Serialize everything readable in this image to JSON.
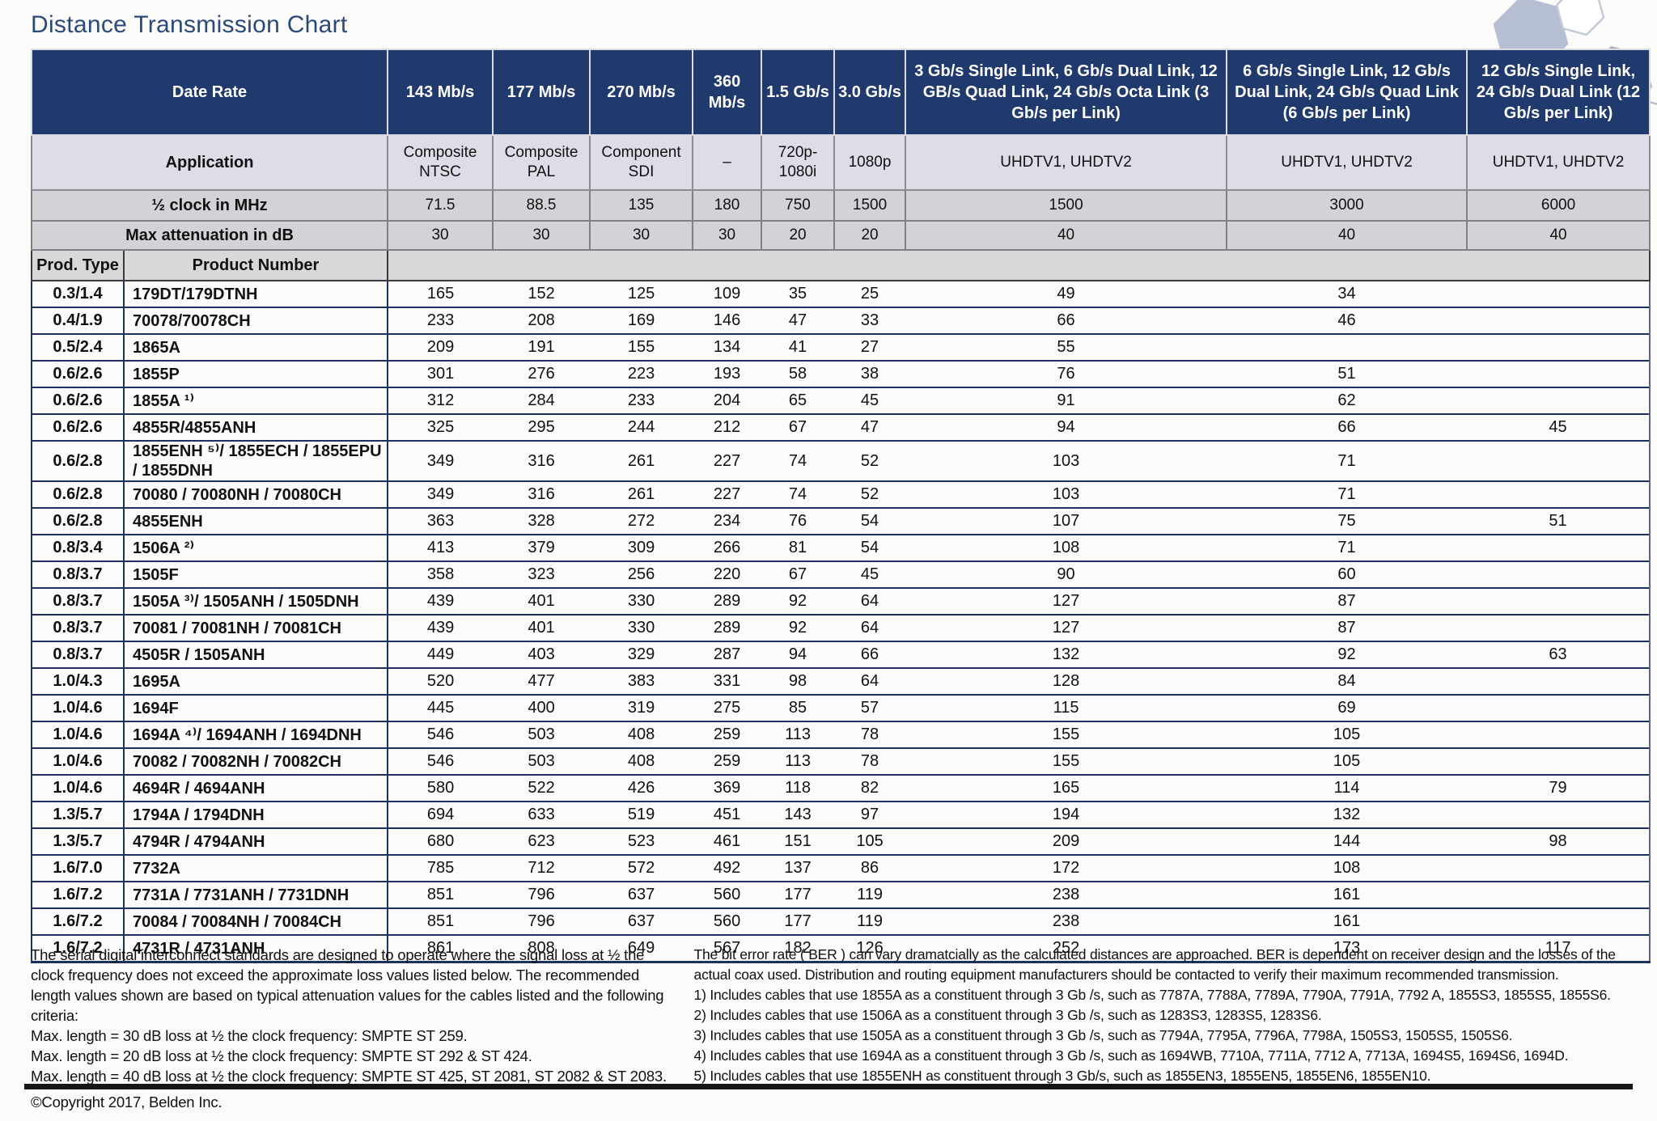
{
  "title": "Distance Transmission Chart",
  "colors": {
    "header_navy": "#203a6d",
    "title_blue": "#2b4a79",
    "row_line_navy": "#1c3160",
    "application_row_bg": "#dcdde7",
    "gray_row_bg": "#d2d3d6",
    "product_header_bg": "#d7d8da",
    "hexagon_fill": "#b5bed3",
    "hexagon_stroke": "#a9b1c3"
  },
  "table": {
    "header": {
      "date_rate_label": "Date Rate",
      "application_label": "Application",
      "clock_label": "½ clock in MHz",
      "attenuation_label": "Max attenuation in dB",
      "prod_type_label": "Prod. Type",
      "product_number_label": "Product Number",
      "columns": [
        {
          "rate": "143 Mb/s",
          "application": "Composite NTSC",
          "clock": "71.5",
          "attenuation": "30"
        },
        {
          "rate": "177 Mb/s",
          "application": "Composite PAL",
          "clock": "88.5",
          "attenuation": "30"
        },
        {
          "rate": "270 Mb/s",
          "application": "Component SDI",
          "clock": "135",
          "attenuation": "30"
        },
        {
          "rate": "360 Mb/s",
          "application": "–",
          "clock": "180",
          "attenuation": "30"
        },
        {
          "rate": "1.5 Gb/s",
          "application": "720p-1080i",
          "clock": "750",
          "attenuation": "20"
        },
        {
          "rate": "3.0 Gb/s",
          "application": "1080p",
          "clock": "1500",
          "attenuation": "20"
        },
        {
          "rate": "3 Gb/s Single Link, 6 Gb/s Dual Link, 12 GB/s Quad Link, 24 Gb/s Octa Link (3 Gb/s per Link)",
          "application": "UHDTV1, UHDTV2",
          "clock": "1500",
          "attenuation": "40"
        },
        {
          "rate": "6 Gb/s Single Link, 12 Gb/s Dual Link, 24 Gb/s Quad Link (6 Gb/s per Link)",
          "application": "UHDTV1, UHDTV2",
          "clock": "3000",
          "attenuation": "40"
        },
        {
          "rate": "12 Gb/s Single Link, 24 Gb/s Dual Link (12 Gb/s per Link)",
          "application": "UHDTV1, UHDTV2",
          "clock": "6000",
          "attenuation": "40"
        }
      ]
    },
    "rows": [
      {
        "type": "0.3/1.4",
        "product": "179DT/179DTNH",
        "values": [
          "165",
          "152",
          "125",
          "109",
          "35",
          "25",
          "49",
          "34",
          ""
        ]
      },
      {
        "type": "0.4/1.9",
        "product": "70078/70078CH",
        "values": [
          "233",
          "208",
          "169",
          "146",
          "47",
          "33",
          "66",
          "46",
          ""
        ]
      },
      {
        "type": "0.5/2.4",
        "product": "1865A",
        "values": [
          "209",
          "191",
          "155",
          "134",
          "41",
          "27",
          "55",
          "",
          ""
        ]
      },
      {
        "type": "0.6/2.6",
        "product": "1855P",
        "values": [
          "301",
          "276",
          "223",
          "193",
          "58",
          "38",
          "76",
          "51",
          ""
        ]
      },
      {
        "type": "0.6/2.6",
        "product": "1855A ¹⁾",
        "values": [
          "312",
          "284",
          "233",
          "204",
          "65",
          "45",
          "91",
          "62",
          ""
        ]
      },
      {
        "type": "0.6/2.6",
        "product": "4855R/4855ANH",
        "values": [
          "325",
          "295",
          "244",
          "212",
          "67",
          "47",
          "94",
          "66",
          "45"
        ]
      },
      {
        "type": "0.6/2.8",
        "product": "1855ENH ⁵⁾/ 1855ECH / 1855EPU / 1855DNH",
        "values": [
          "349",
          "316",
          "261",
          "227",
          "74",
          "52",
          "103",
          "71",
          ""
        ]
      },
      {
        "type": "0.6/2.8",
        "product": "70080 / 70080NH / 70080CH",
        "values": [
          "349",
          "316",
          "261",
          "227",
          "74",
          "52",
          "103",
          "71",
          ""
        ]
      },
      {
        "type": "0.6/2.8",
        "product": "4855ENH",
        "values": [
          "363",
          "328",
          "272",
          "234",
          "76",
          "54",
          "107",
          "75",
          "51"
        ]
      },
      {
        "type": "0.8/3.4",
        "product": "1506A ²⁾",
        "values": [
          "413",
          "379",
          "309",
          "266",
          "81",
          "54",
          "108",
          "71",
          ""
        ]
      },
      {
        "type": "0.8/3.7",
        "product": "1505F",
        "values": [
          "358",
          "323",
          "256",
          "220",
          "67",
          "45",
          "90",
          "60",
          ""
        ]
      },
      {
        "type": "0.8/3.7",
        "product": "1505A ³⁾/ 1505ANH / 1505DNH",
        "values": [
          "439",
          "401",
          "330",
          "289",
          "92",
          "64",
          "127",
          "87",
          ""
        ]
      },
      {
        "type": "0.8/3.7",
        "product": "70081 / 70081NH / 70081CH",
        "values": [
          "439",
          "401",
          "330",
          "289",
          "92",
          "64",
          "127",
          "87",
          ""
        ]
      },
      {
        "type": "0.8/3.7",
        "product": "4505R / 1505ANH",
        "values": [
          "449",
          "403",
          "329",
          "287",
          "94",
          "66",
          "132",
          "92",
          "63"
        ]
      },
      {
        "type": "1.0/4.3",
        "product": "1695A",
        "values": [
          "520",
          "477",
          "383",
          "331",
          "98",
          "64",
          "128",
          "84",
          ""
        ]
      },
      {
        "type": "1.0/4.6",
        "product": "1694F",
        "values": [
          "445",
          "400",
          "319",
          "275",
          "85",
          "57",
          "115",
          "69",
          ""
        ]
      },
      {
        "type": "1.0/4.6",
        "product": "1694A ⁴⁾/ 1694ANH / 1694DNH",
        "values": [
          "546",
          "503",
          "408",
          "259",
          "113",
          "78",
          "155",
          "105",
          ""
        ]
      },
      {
        "type": "1.0/4.6",
        "product": "70082 / 70082NH / 70082CH",
        "values": [
          "546",
          "503",
          "408",
          "259",
          "113",
          "78",
          "155",
          "105",
          ""
        ]
      },
      {
        "type": "1.0/4.6",
        "product": "4694R / 4694ANH",
        "values": [
          "580",
          "522",
          "426",
          "369",
          "118",
          "82",
          "165",
          "114",
          "79"
        ]
      },
      {
        "type": "1.3/5.7",
        "product": "1794A / 1794DNH",
        "values": [
          "694",
          "633",
          "519",
          "451",
          "143",
          "97",
          "194",
          "132",
          ""
        ]
      },
      {
        "type": "1.3/5.7",
        "product": "4794R / 4794ANH",
        "values": [
          "680",
          "623",
          "523",
          "461",
          "151",
          "105",
          "209",
          "144",
          "98"
        ]
      },
      {
        "type": "1.6/7.0",
        "product": "7732A",
        "values": [
          "785",
          "712",
          "572",
          "492",
          "137",
          "86",
          "172",
          "108",
          ""
        ]
      },
      {
        "type": "1.6/7.2",
        "product": "7731A / 7731ANH / 7731DNH",
        "values": [
          "851",
          "796",
          "637",
          "560",
          "177",
          "119",
          "238",
          "161",
          ""
        ]
      },
      {
        "type": "1.6/7.2",
        "product": "70084 / 70084NH / 70084CH",
        "values": [
          "851",
          "796",
          "637",
          "560",
          "177",
          "119",
          "238",
          "161",
          ""
        ]
      },
      {
        "type": "1.6/7.2",
        "product": "4731R / 4731ANH",
        "values": [
          "861",
          "808",
          "649",
          "567",
          "182",
          "126",
          "252",
          "173",
          "117"
        ]
      }
    ]
  },
  "footnotes": {
    "left_intro": "The serial digital interconnect standards are designed to operate where the signal loss at ½ the clock frequency does not exceed the approximate loss values listed below. The recommended length values shown are based on typical attenuation values for the cables listed and the following criteria:",
    "left_lines": [
      "Max. length = 30 dB loss at ½ the clock frequency: SMPTE ST 259.",
      "Max. length = 20 dB loss at ½ the clock frequency: SMPTE ST 292 & ST 424.",
      "Max. length = 40 dB loss at ½ the clock frequency: SMPTE ST 425, ST 2081, ST 2082 & ST 2083."
    ],
    "copyright": "©Copyright 2017, Belden Inc.",
    "right_intro": "The bit error rate ( BER ) can vary dramatcially as the calculated distances are approached. BER is dependent on receiver design and the losses of the actual coax used. Distribution and routing equipment manufacturers should be contacted to verify their maximum recommended transmission.",
    "right_lines": [
      "1) Includes cables that use 1855A as a constituent through 3 Gb /s, such as 7787A, 7788A, 7789A, 7790A, 7791A, 7792 A, 1855S3, 1855S5, 1855S6.",
      "2) Includes cables that use 1506A as a constituent through 3 Gb /s, such as 1283S3, 1283S5, 1283S6.",
      "3) Includes cables that use 1505A as a constituent through 3 Gb /s, such as 7794A, 7795A, 7796A, 7798A, 1505S3, 1505S5, 1505S6.",
      "4) Includes cables that use 1694A as a constituent through 3 Gb /s, such as 1694WB, 7710A, 7711A, 7712 A, 7713A, 1694S5, 1694S6, 1694D.",
      "5) Includes cables that use 1855ENH as constituent through 3 Gb/s, such as 1855EN3, 1855EN5, 1855EN6, 1855EN10."
    ]
  }
}
